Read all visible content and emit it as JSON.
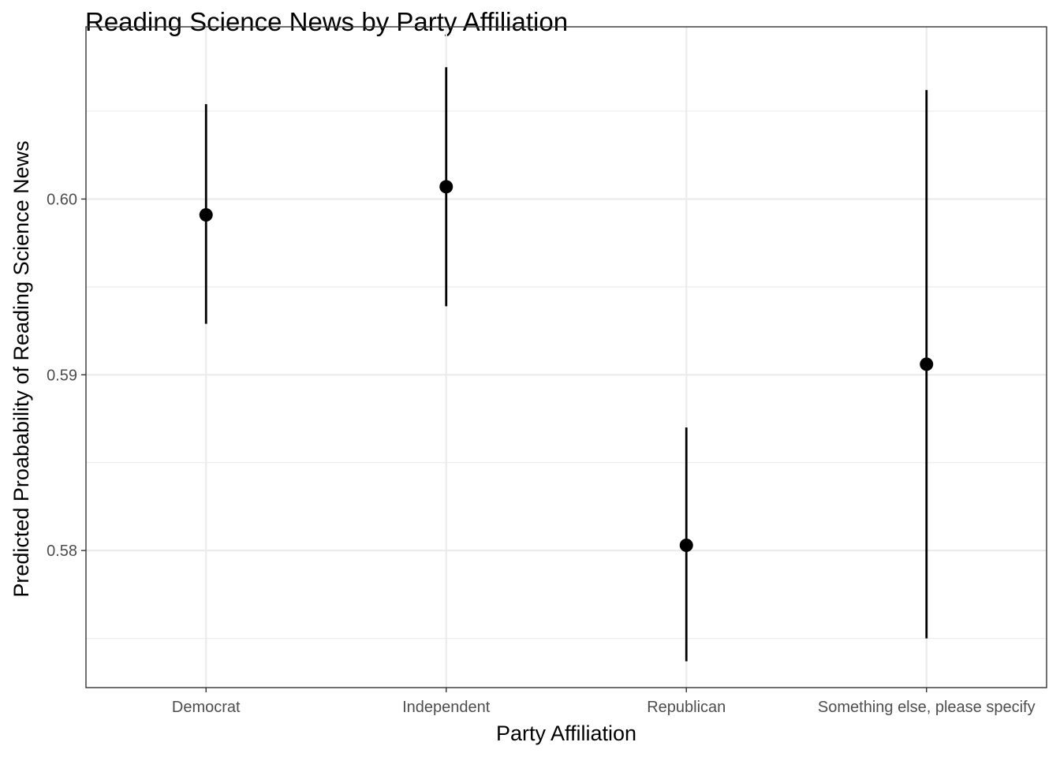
{
  "chart_data": {
    "type": "scatter",
    "title": "Reading Science News by Party Affiliation",
    "xlabel": "Party Affiliation",
    "ylabel": "Predicted Proabability of Reading  Science News",
    "categories": [
      "Democrat",
      "Independent",
      "Republican",
      "Something else, please specify"
    ],
    "series": [
      {
        "values": [
          0.5991,
          0.6007,
          0.5803,
          0.5906
        ],
        "lower": [
          0.5929,
          0.5939,
          0.5737,
          0.575
        ],
        "upper": [
          0.6054,
          0.6075,
          0.587,
          0.6062
        ]
      }
    ],
    "ylim": [
      0.5722,
      0.6098
    ],
    "yticks": [
      0.58,
      0.59,
      0.6
    ],
    "ytick_labels": [
      "0.58",
      "0.59",
      "0.60"
    ],
    "grid": true,
    "legend": "none",
    "colors": {
      "points": "#000000",
      "panel_border": "#333333",
      "grid_major": "#ebebeb",
      "tick_text": "#4d4d4d"
    }
  }
}
